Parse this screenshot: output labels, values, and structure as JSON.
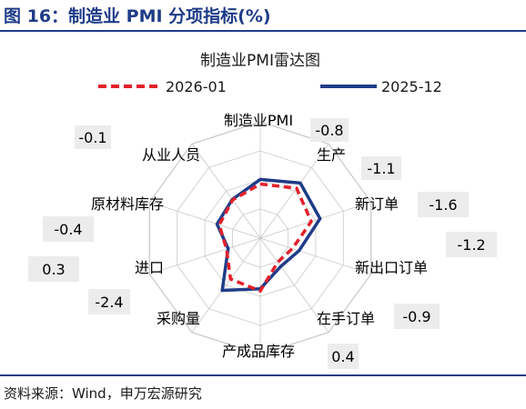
{
  "figure_title": "图 16：制造业 PMI 分项指标(%)",
  "source_note": "资料来源：Wind，申万宏源研究",
  "colors": {
    "series_2026_01": "#e3202a",
    "series_2025_12": "#1f3c88",
    "grid": "#c8c8c8",
    "diff_box": "#ececec",
    "title_blue": "#1f3c88"
  },
  "chart_data": {
    "type": "radar",
    "title": "制造业PMI雷达图",
    "axes": [
      "制造业PMI",
      "生产",
      "新订单",
      "新出口订单",
      "在手订单",
      "产成品库存",
      "采购量",
      "进口",
      "原材料库存",
      "从业人员"
    ],
    "range": [
      40,
      60
    ],
    "series": [
      {
        "name": "2026-01",
        "style": "dashed",
        "values": [
          49.3,
          50.6,
          49.2,
          45.8,
          45.1,
          49.1,
          48.7,
          46.1,
          47.4,
          48.1
        ]
      },
      {
        "name": "2025-12",
        "style": "solid",
        "values": [
          50.1,
          51.7,
          50.8,
          47.0,
          46.0,
          48.7,
          51.1,
          45.8,
          47.8,
          48.2
        ]
      }
    ],
    "difference_labels": [
      "-0.8",
      "-1.1",
      "-1.6",
      "-1.2",
      "-0.9",
      "0.4",
      "-2.4",
      "0.3",
      "-0.4",
      "-0.1"
    ]
  }
}
